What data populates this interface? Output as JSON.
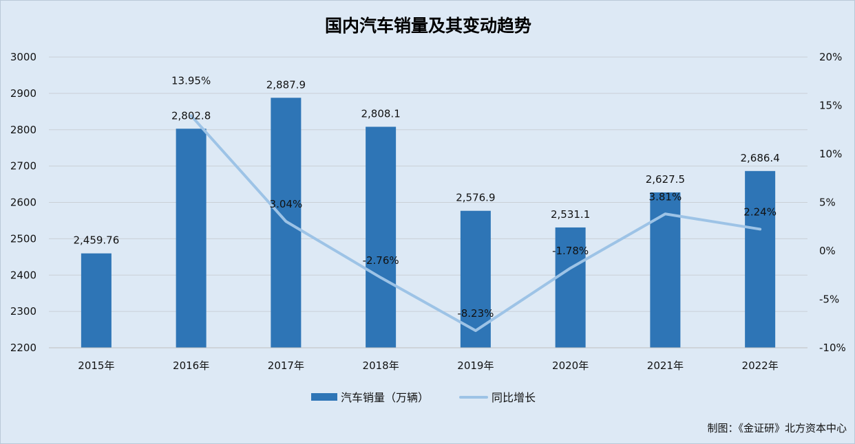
{
  "chart_data": {
    "type": "bar",
    "title": "国内汽车销量及其变动趋势",
    "categories": [
      "2015年",
      "2016年",
      "2017年",
      "2018年",
      "2019年",
      "2020年",
      "2021年",
      "2022年"
    ],
    "series": [
      {
        "name": "汽车销量（万辆）",
        "type": "bar",
        "axis": "left",
        "values": [
          2459.76,
          2802.8,
          2887.9,
          2808.1,
          2576.9,
          2531.1,
          2627.5,
          2686.4
        ],
        "labels": [
          "2,459.76",
          "2,802.8",
          "2,887.9",
          "2,808.1",
          "2,576.9",
          "2,531.1",
          "2,627.5",
          "2,686.4"
        ],
        "color": "#2e75b6"
      },
      {
        "name": "同比增长",
        "type": "line",
        "axis": "right",
        "x": [
          "2016年",
          "2017年",
          "2018年",
          "2019年",
          "2020年",
          "2021年",
          "2022年"
        ],
        "values": [
          13.95,
          3.04,
          -2.76,
          -8.23,
          -1.78,
          3.81,
          2.24
        ],
        "labels": [
          "13.95%",
          "3.04%",
          "-2.76%",
          "-8.23%",
          "-1.78%",
          "3.81%",
          "2.24%"
        ],
        "color": "#9dc3e6"
      }
    ],
    "y_left": {
      "ylim": [
        2200,
        3000
      ],
      "ticks": [
        "3000",
        "2900",
        "2800",
        "2700",
        "2600",
        "2500",
        "2400",
        "2300",
        "2200"
      ]
    },
    "y_right": {
      "ylim": [
        -10,
        20
      ],
      "ticks": [
        "20%",
        "15%",
        "10%",
        "5%",
        "0%",
        "-5%",
        "-10%"
      ]
    },
    "grid": true,
    "legend": "bottom-center",
    "source": "制图：《金证研》北方资本中心"
  }
}
